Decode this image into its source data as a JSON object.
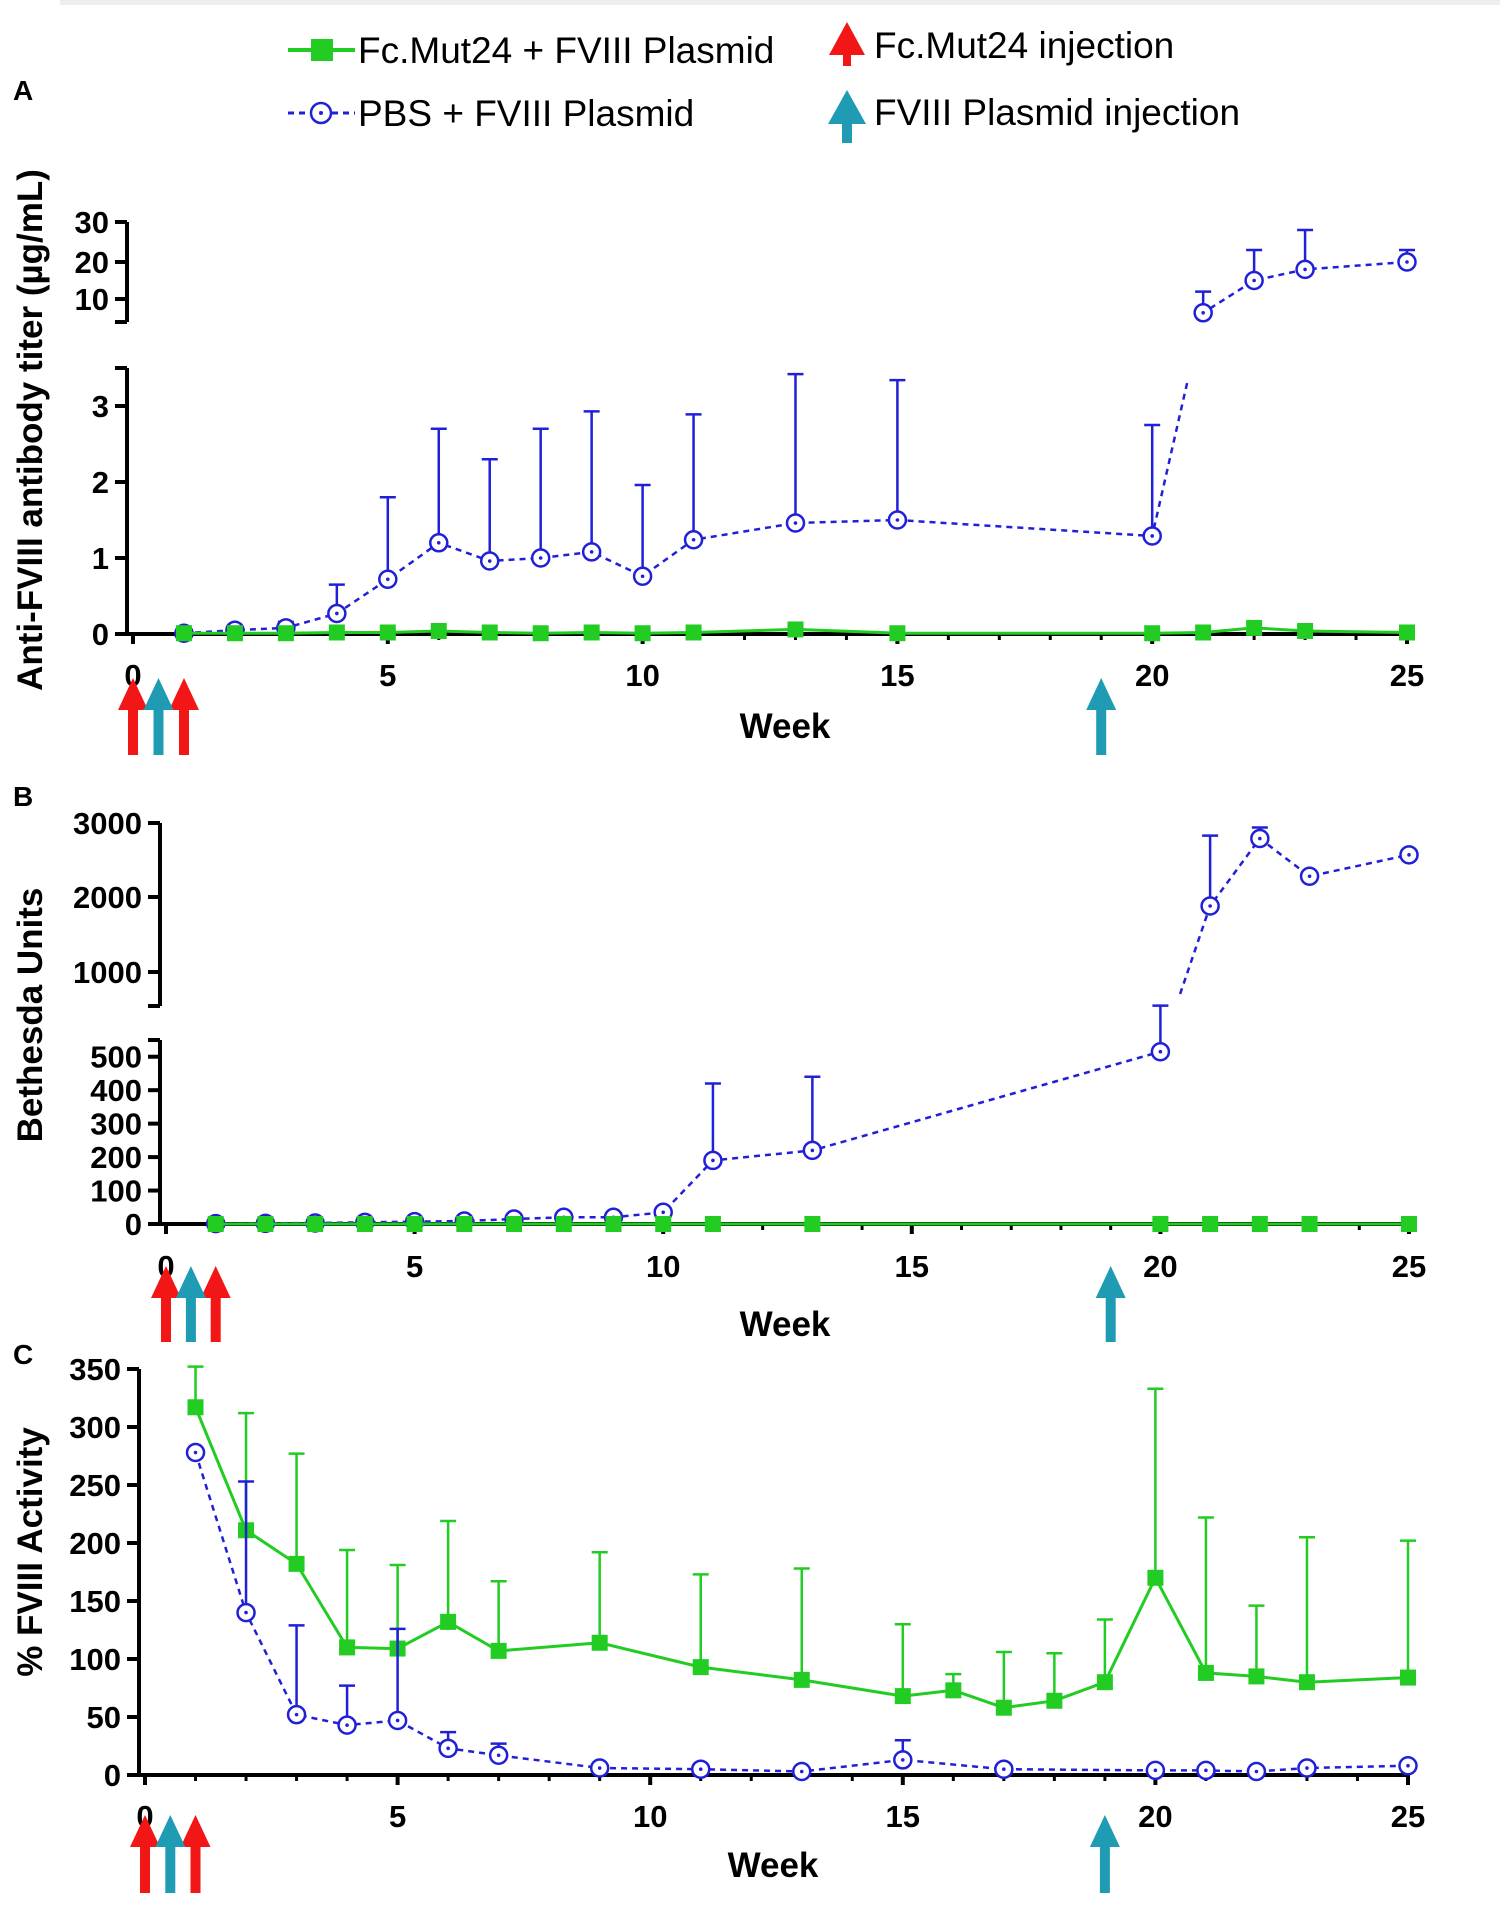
{
  "legend": {
    "fc_series": "Fc.Mut24 + FVIII Plasmid",
    "pbs_series": "PBS + FVIII Plasmid",
    "fc_injection": "Fc.Mut24 injection",
    "plasmid_injection": "FVIII Plasmid  injection"
  },
  "colors": {
    "fc": "#22cc22",
    "pbs": "#2020d8",
    "red_arrow": "#f21616",
    "teal_arrow": "#1f9cb3"
  },
  "injections": {
    "fc_weeks": [
      0,
      1
    ],
    "plasmid_weeks": [
      0.5,
      19
    ]
  },
  "chart_data": [
    {
      "panel": "A",
      "type": "line",
      "xlabel": "Week",
      "ylabel": "Anti-FVIII antibody titer (µg/mL)",
      "xlim": [
        0,
        25
      ],
      "xticks": [
        "0",
        "5",
        "10",
        "15",
        "20",
        "25"
      ],
      "y_lower_range": [
        0,
        3.5
      ],
      "y_lower_ticks": [
        "0",
        "1",
        "2",
        "3"
      ],
      "y_upper_range": [
        5,
        30
      ],
      "y_upper_ticks": [
        "10",
        "20",
        "30"
      ],
      "series": [
        {
          "name": "PBS + FVIII Plasmid",
          "x": [
            1,
            2,
            3,
            4,
            5,
            6,
            7,
            8,
            9,
            10,
            11,
            13,
            15,
            20,
            21,
            22,
            23,
            25
          ],
          "y": [
            0.01,
            0.05,
            0.08,
            0.27,
            0.72,
            1.2,
            0.96,
            1.0,
            1.08,
            0.76,
            1.24,
            1.46,
            1.5,
            1.29,
            7,
            15,
            18,
            20
          ],
          "err": [
            0,
            0,
            0.08,
            0.38,
            1.08,
            1.5,
            1.34,
            1.7,
            1.85,
            1.2,
            1.65,
            1.96,
            1.84,
            1.46,
            5,
            8,
            10,
            3
          ]
        },
        {
          "name": "Fc.Mut24 + FVIII Plasmid",
          "x": [
            1,
            2,
            3,
            4,
            5,
            6,
            7,
            8,
            9,
            10,
            11,
            13,
            15,
            20,
            21,
            22,
            23,
            25
          ],
          "y": [
            0.01,
            0.01,
            0.01,
            0.02,
            0.02,
            0.04,
            0.02,
            0.01,
            0.02,
            0.01,
            0.02,
            0.06,
            0.01,
            0.01,
            0.02,
            0.08,
            0.04,
            0.02
          ],
          "err": []
        }
      ]
    },
    {
      "panel": "B",
      "type": "line",
      "xlabel": "Week",
      "ylabel": "Bethesda  Units",
      "xlim": [
        0,
        25
      ],
      "xticks": [
        "0",
        "5",
        "10",
        "15",
        "20",
        "25"
      ],
      "y_lower_range": [
        0,
        550
      ],
      "y_lower_ticks": [
        "0",
        "100",
        "200",
        "300",
        "400",
        "500"
      ],
      "y_upper_range": [
        550,
        3000
      ],
      "y_upper_ticks": [
        "1000",
        "2000",
        "3000"
      ],
      "series": [
        {
          "name": "PBS + FVIII Plasmid",
          "x": [
            1,
            2,
            3,
            4,
            5,
            6,
            7,
            8,
            9,
            10,
            11,
            13,
            20,
            21,
            22,
            23,
            25
          ],
          "y": [
            1,
            2,
            3,
            5,
            7,
            9,
            15,
            20,
            20,
            35,
            190,
            220,
            515,
            1880,
            2790,
            2280,
            2570
          ],
          "err": [
            0,
            0,
            0,
            0,
            0,
            0,
            0,
            0,
            0,
            0,
            230,
            220,
            40,
            950,
            150,
            0,
            0
          ]
        },
        {
          "name": "Fc.Mut24 + FVIII Plasmid",
          "x": [
            1,
            2,
            3,
            4,
            5,
            6,
            7,
            8,
            9,
            10,
            11,
            13,
            20,
            21,
            22,
            23,
            25
          ],
          "y": [
            0,
            0,
            0,
            0,
            0,
            0,
            0,
            0,
            0,
            0,
            0,
            0,
            0,
            0,
            0,
            0,
            0
          ],
          "err": []
        }
      ]
    },
    {
      "panel": "C",
      "type": "line",
      "xlabel": "Week",
      "ylabel": "% FVIII Activity",
      "xlim": [
        0,
        25
      ],
      "xticks": [
        "0",
        "5",
        "10",
        "15",
        "20",
        "25"
      ],
      "ylim": [
        0,
        350
      ],
      "yticks": [
        "0",
        "50",
        "100",
        "150",
        "200",
        "250",
        "300",
        "350"
      ],
      "series": [
        {
          "name": "Fc.Mut24 + FVIII Plasmid",
          "x": [
            1,
            2,
            3,
            4,
            5,
            6,
            7,
            9,
            11,
            13,
            15,
            16,
            17,
            18,
            19,
            20,
            21,
            22,
            23,
            25
          ],
          "y": [
            317,
            211,
            182,
            110,
            109,
            132,
            107,
            114,
            93,
            82,
            68,
            73,
            58,
            64,
            80,
            170,
            88,
            85,
            80,
            84
          ],
          "err": [
            35,
            101,
            95,
            84,
            72,
            87,
            60,
            78,
            80,
            96,
            62,
            14,
            48,
            41,
            54,
            163,
            134,
            61,
            125,
            118
          ]
        },
        {
          "name": "PBS + FVIII Plasmid",
          "x": [
            1,
            2,
            3,
            4,
            5,
            6,
            7,
            9,
            11,
            13,
            15,
            17,
            20,
            21,
            22,
            23,
            25
          ],
          "y": [
            278,
            140,
            52,
            43,
            47,
            23,
            17,
            6,
            5,
            3,
            13,
            5,
            4,
            4,
            3,
            6,
            8
          ],
          "err": [
            0,
            113,
            77,
            34,
            79,
            14,
            10,
            0,
            0,
            0,
            17,
            0,
            0,
            0,
            0,
            0,
            0
          ]
        }
      ]
    }
  ]
}
